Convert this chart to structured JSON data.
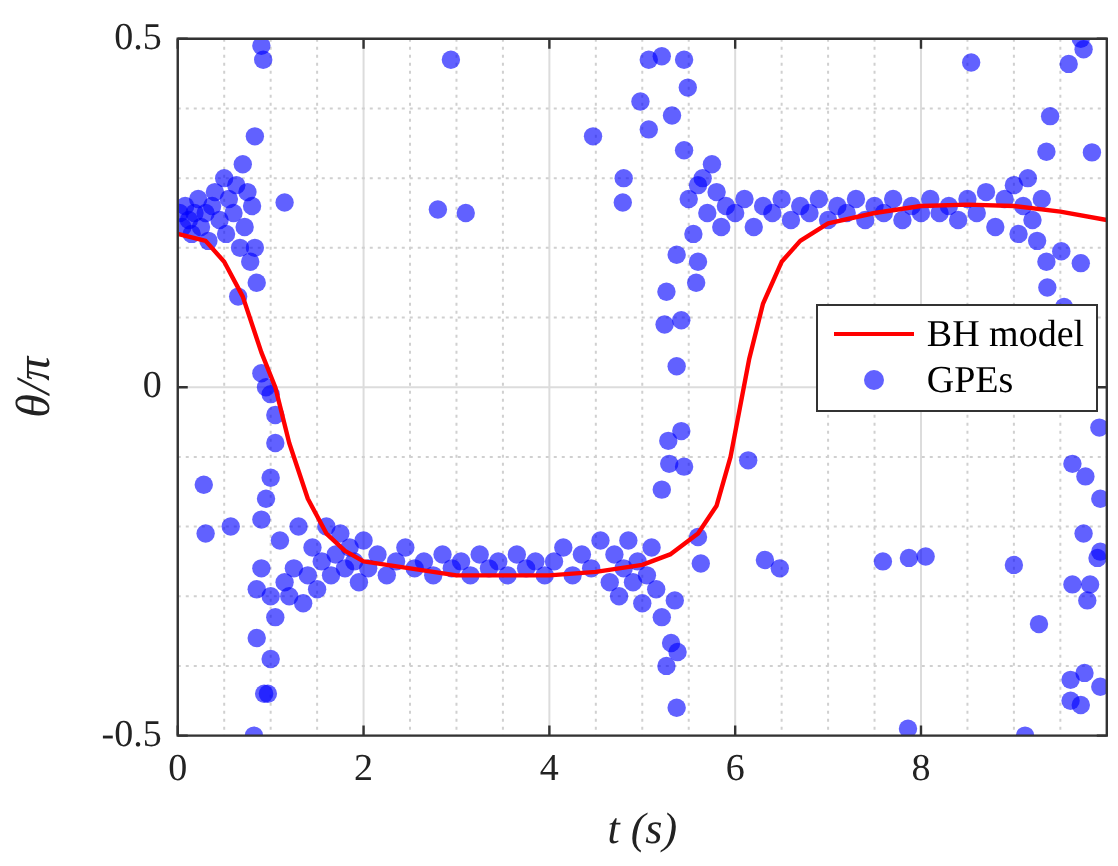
{
  "chart_data": {
    "type": "scatter",
    "xlabel": "t (s)",
    "ylabel": "θ/π",
    "xlim": [
      0,
      10
    ],
    "xticks": [
      0,
      {
        "value": 0.5,
        "label": null
      },
      {
        "value": 1,
        "label": null
      },
      {
        "value": 1.5,
        "label": null
      },
      2,
      {
        "value": 2.5,
        "label": null
      },
      {
        "value": 3,
        "label": null
      },
      {
        "value": 3.5,
        "label": null
      },
      4,
      {
        "value": 4.5,
        "label": null
      },
      {
        "value": 5,
        "label": null
      },
      {
        "value": 5.5,
        "label": null
      },
      6,
      {
        "value": 6.5,
        "label": null
      },
      {
        "value": 7,
        "label": null
      },
      {
        "value": 7.5,
        "label": null
      },
      8,
      {
        "value": 8.5,
        "label": null
      },
      {
        "value": 9,
        "label": null
      },
      {
        "value": 9.5,
        "label": null
      }
    ],
    "ylim": [
      -0.5,
      0.5
    ],
    "yticks": [
      -0.5,
      {
        "value": -0.4,
        "label": null
      },
      {
        "value": -0.3,
        "label": null
      },
      {
        "value": -0.2,
        "label": null
      },
      {
        "value": -0.1,
        "label": null
      },
      0,
      {
        "value": 0.1,
        "label": null
      },
      {
        "value": 0.2,
        "label": null
      },
      {
        "value": 0.3,
        "label": null
      },
      {
        "value": 0.4,
        "label": null
      },
      0.5
    ],
    "grid": true,
    "legend": "right",
    "series": [
      {
        "name": "BH model",
        "type": "line",
        "color": "#ff0000",
        "marker": "none",
        "line_style": "solid",
        "x": [
          0,
          0.3,
          0.5,
          0.7,
          0.9,
          1.05,
          1.2,
          1.4,
          1.6,
          1.8,
          2,
          2.5,
          3,
          3.5,
          4,
          4.5,
          5,
          5.3,
          5.6,
          5.8,
          5.95,
          6.05,
          6.15,
          6.3,
          6.5,
          6.7,
          7,
          7.5,
          8,
          8.5,
          9,
          9.5,
          10
        ],
        "values": [
          0.22,
          0.21,
          0.18,
          0.13,
          0.05,
          0,
          -0.08,
          -0.16,
          -0.21,
          -0.235,
          -0.25,
          -0.26,
          -0.27,
          -0.27,
          -0.27,
          -0.265,
          -0.255,
          -0.24,
          -0.21,
          -0.17,
          -0.1,
          -0.03,
          0.04,
          0.12,
          0.18,
          0.21,
          0.235,
          0.25,
          0.26,
          0.262,
          0.26,
          0.252,
          0.24
        ]
      },
      {
        "name": "GPEs",
        "type": "scatter",
        "color": "#0000ff",
        "marker": "circle",
        "x": [
          0.02,
          0.05,
          0.08,
          0.12,
          0.15,
          0.18,
          0.22,
          0.25,
          0.3,
          0.33,
          0.37,
          0.4,
          0.45,
          0.5,
          0.52,
          0.55,
          0.6,
          0.63,
          0.67,
          0.7,
          0.72,
          0.75,
          0.78,
          0.8,
          0.83,
          0.9,
          0.92,
          0.83,
          1.15,
          0.28,
          0.3,
          0.57,
          0.85,
          0.65,
          0.9,
          0.95,
          1.0,
          1.05,
          1.05,
          1.0,
          0.95,
          0.9,
          0.9,
          0.85,
          1.0,
          1.05,
          0.85,
          1.0,
          0.93,
          0.97,
          0.82,
          1.1,
          1.15,
          1.2,
          1.25,
          1.3,
          1.35,
          1.4,
          1.45,
          1.5,
          1.55,
          1.6,
          1.65,
          1.7,
          1.75,
          1.8,
          1.85,
          1.9,
          1.95,
          2.0,
          2.05,
          2.15,
          2.25,
          2.35,
          2.45,
          2.55,
          2.65,
          2.75,
          2.85,
          2.95,
          3.05,
          3.15,
          3.25,
          3.35,
          3.45,
          3.55,
          3.65,
          3.75,
          3.85,
          3.95,
          4.05,
          4.15,
          4.25,
          4.35,
          4.45,
          4.55,
          4.65,
          4.7,
          4.75,
          4.8,
          4.85,
          4.9,
          4.95,
          5.0,
          5.05,
          5.1,
          5.15,
          2.94,
          2.8,
          3.1,
          4.47,
          4.8,
          5.07,
          5.21,
          5.45,
          4.98,
          5.49,
          5.07,
          5.32,
          5.45,
          4.79,
          5.37,
          5.6,
          5.58,
          5.26,
          5.24,
          5.42,
          5.37,
          5.42,
          5.28,
          5.29,
          5.45,
          5.21,
          6.14,
          6.32,
          6.48,
          5.6,
          5.63,
          5.35,
          5.21,
          5.31,
          5.26,
          5.38,
          5.37,
          5.5,
          5.55,
          5.6,
          5.65,
          5.7,
          5.75,
          5.8,
          5.85,
          5.9,
          6.0,
          6.1,
          6.2,
          6.3,
          6.4,
          6.5,
          6.6,
          6.7,
          6.8,
          6.9,
          7.0,
          7.1,
          7.2,
          7.3,
          7.4,
          7.5,
          7.6,
          7.7,
          7.8,
          7.9,
          8.0,
          8.1,
          8.2,
          8.3,
          8.4,
          8.5,
          8.6,
          8.7,
          8.8,
          8.9,
          9.0,
          9.05,
          9.1,
          9.15,
          9.2,
          9.25,
          9.3,
          9.35,
          7.59,
          7.87,
          8.05,
          9.0,
          9.27,
          7.86,
          9.12,
          8.54,
          9.59,
          9.72,
          9.75,
          9.39,
          9.84,
          9.35,
          9.51,
          9.72,
          9.54,
          9.52,
          9.36,
          9.63,
          9.77,
          9.93,
          9.9,
          9.75,
          9.79,
          9.82,
          9.93,
          9.63,
          9.61,
          9.76,
          9.72,
          9.61,
          9.93,
          9.92
        ],
        "values": [
          0.25,
          0.23,
          0.26,
          0.24,
          0.22,
          0.25,
          0.27,
          0.23,
          0.25,
          0.21,
          0.26,
          0.28,
          0.24,
          0.3,
          0.22,
          0.27,
          0.25,
          0.29,
          0.2,
          0.32,
          0.23,
          0.28,
          0.18,
          0.26,
          0.2,
          0.49,
          0.47,
          0.36,
          0.265,
          -0.14,
          -0.21,
          -0.2,
          0.15,
          0.13,
          0.02,
          0,
          -0.01,
          -0.04,
          -0.08,
          -0.13,
          -0.16,
          -0.19,
          -0.26,
          -0.29,
          -0.3,
          -0.33,
          -0.36,
          -0.39,
          -0.44,
          -0.44,
          -0.5,
          -0.22,
          -0.28,
          -0.3,
          -0.26,
          -0.2,
          -0.31,
          -0.27,
          -0.23,
          -0.29,
          -0.25,
          -0.2,
          -0.27,
          -0.24,
          -0.21,
          -0.26,
          -0.23,
          -0.25,
          -0.28,
          -0.22,
          -0.26,
          -0.24,
          -0.27,
          -0.25,
          -0.23,
          -0.26,
          -0.25,
          -0.27,
          -0.24,
          -0.26,
          -0.25,
          -0.27,
          -0.24,
          -0.26,
          -0.25,
          -0.27,
          -0.24,
          -0.26,
          -0.25,
          -0.27,
          -0.25,
          -0.23,
          -0.27,
          -0.24,
          -0.26,
          -0.22,
          -0.28,
          -0.24,
          -0.3,
          -0.26,
          -0.22,
          -0.28,
          -0.25,
          -0.31,
          -0.27,
          -0.23,
          -0.29,
          0.47,
          0.255,
          0.25,
          0.36,
          0.3,
          0.47,
          0.475,
          0.47,
          0.41,
          0.43,
          0.37,
          0.39,
          0.34,
          0.265,
          0.19,
          0.18,
          0.15,
          0.137,
          0.09,
          0.096,
          0.03,
          -0.063,
          -0.077,
          -0.11,
          -0.114,
          -0.147,
          -0.105,
          -0.248,
          -0.26,
          -0.215,
          -0.253,
          -0.306,
          -0.33,
          -0.367,
          -0.4,
          -0.38,
          -0.46,
          0.27,
          0.22,
          0.29,
          0.3,
          0.25,
          0.32,
          0.28,
          0.23,
          0.26,
          0.25,
          0.27,
          0.23,
          0.26,
          0.25,
          0.27,
          0.24,
          0.26,
          0.25,
          0.27,
          0.24,
          0.26,
          0.25,
          0.27,
          0.24,
          0.26,
          0.25,
          0.27,
          0.24,
          0.26,
          0.25,
          0.27,
          0.25,
          0.26,
          0.24,
          0.27,
          0.25,
          0.28,
          0.23,
          0.27,
          0.29,
          0.22,
          0.26,
          0.3,
          0.24,
          0.21,
          0.27,
          0.18,
          -0.25,
          -0.245,
          -0.243,
          -0.255,
          -0.34,
          -0.49,
          -0.5,
          0.466,
          0.464,
          0.5,
          0.485,
          0.389,
          0.337,
          0.338,
          0.195,
          0.178,
          0.115,
          null,
          0.143,
          -0.11,
          -0.128,
          -0.16,
          -0.245,
          -0.21,
          -0.306,
          -0.283,
          -0.236,
          -0.283,
          -0.42,
          -0.41,
          -0.456,
          -0.45,
          -0.43,
          -0.058
        ]
      }
    ]
  }
}
